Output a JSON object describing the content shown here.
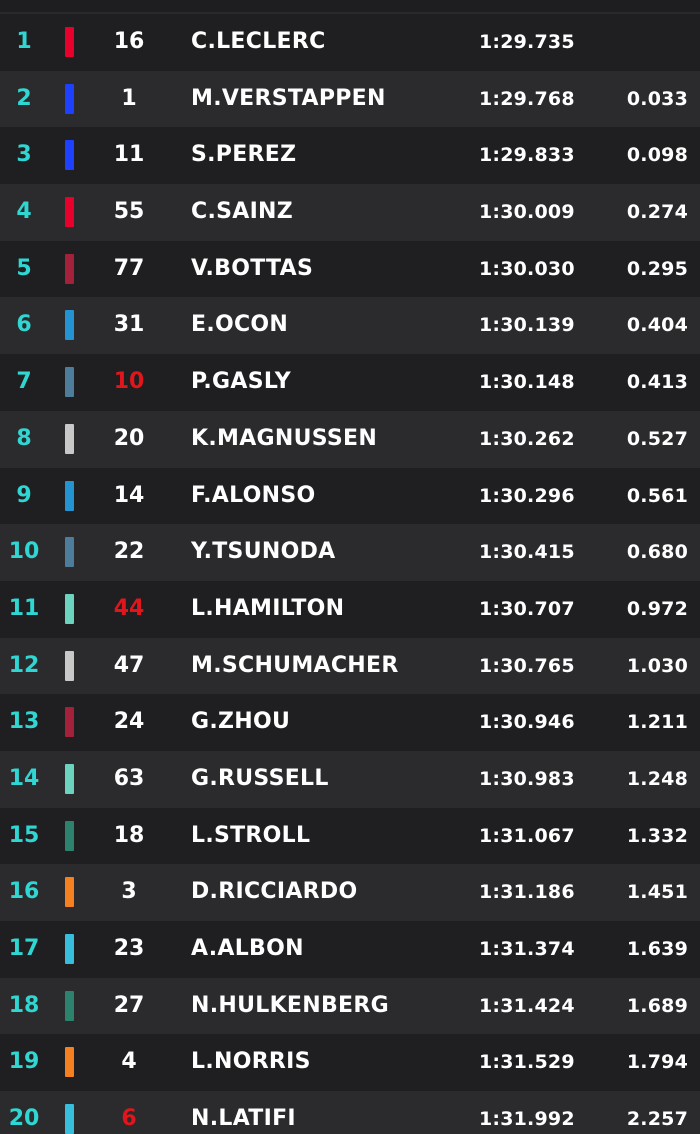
{
  "results": [
    {
      "pos": "1",
      "number": "16",
      "driver": "C.LECLERC",
      "time": "1:29.735",
      "gap": "",
      "team_color": "#e8002d",
      "number_color": "white"
    },
    {
      "pos": "2",
      "number": "1",
      "driver": "M.VERSTAPPEN",
      "time": "1:29.768",
      "gap": "0.033",
      "team_color": "#1e41ff",
      "number_color": "white"
    },
    {
      "pos": "3",
      "number": "11",
      "driver": "S.PEREZ",
      "time": "1:29.833",
      "gap": "0.098",
      "team_color": "#1e41ff",
      "number_color": "white"
    },
    {
      "pos": "4",
      "number": "55",
      "driver": "C.SAINZ",
      "time": "1:30.009",
      "gap": "0.274",
      "team_color": "#e8002d",
      "number_color": "white"
    },
    {
      "pos": "5",
      "number": "77",
      "driver": "V.BOTTAS",
      "time": "1:30.030",
      "gap": "0.295",
      "team_color": "#a3213a",
      "number_color": "white"
    },
    {
      "pos": "6",
      "number": "31",
      "driver": "E.OCON",
      "time": "1:30.139",
      "gap": "0.404",
      "team_color": "#2493d1",
      "number_color": "white"
    },
    {
      "pos": "7",
      "number": "10",
      "driver": "P.GASLY",
      "time": "1:30.148",
      "gap": "0.413",
      "team_color": "#4e7c9b",
      "number_color": "red"
    },
    {
      "pos": "8",
      "number": "20",
      "driver": "K.MAGNUSSEN",
      "time": "1:30.262",
      "gap": "0.527",
      "team_color": "#c8c8c8",
      "number_color": "white"
    },
    {
      "pos": "9",
      "number": "14",
      "driver": "F.ALONSO",
      "time": "1:30.296",
      "gap": "0.561",
      "team_color": "#2493d1",
      "number_color": "white"
    },
    {
      "pos": "10",
      "number": "22",
      "driver": "Y.TSUNODA",
      "time": "1:30.415",
      "gap": "0.680",
      "team_color": "#4e7c9b",
      "number_color": "white"
    },
    {
      "pos": "11",
      "number": "44",
      "driver": "L.HAMILTON",
      "time": "1:30.707",
      "gap": "0.972",
      "team_color": "#6cd3bf",
      "number_color": "red"
    },
    {
      "pos": "12",
      "number": "47",
      "driver": "M.SCHUMACHER",
      "time": "1:30.765",
      "gap": "1.030",
      "team_color": "#c8c8c8",
      "number_color": "white"
    },
    {
      "pos": "13",
      "number": "24",
      "driver": "G.ZHOU",
      "time": "1:30.946",
      "gap": "1.211",
      "team_color": "#a3213a",
      "number_color": "white"
    },
    {
      "pos": "14",
      "number": "63",
      "driver": "G.RUSSELL",
      "time": "1:30.983",
      "gap": "1.248",
      "team_color": "#6cd3bf",
      "number_color": "white"
    },
    {
      "pos": "15",
      "number": "18",
      "driver": "L.STROLL",
      "time": "1:31.067",
      "gap": "1.332",
      "team_color": "#2d826d",
      "number_color": "white"
    },
    {
      "pos": "16",
      "number": "3",
      "driver": "D.RICCIARDO",
      "time": "1:31.186",
      "gap": "1.451",
      "team_color": "#f58020",
      "number_color": "white"
    },
    {
      "pos": "17",
      "number": "23",
      "driver": "A.ALBON",
      "time": "1:31.374",
      "gap": "1.639",
      "team_color": "#37bedd",
      "number_color": "white"
    },
    {
      "pos": "18",
      "number": "27",
      "driver": "N.HULKENBERG",
      "time": "1:31.424",
      "gap": "1.689",
      "team_color": "#2d826d",
      "number_color": "white"
    },
    {
      "pos": "19",
      "number": "4",
      "driver": "L.NORRIS",
      "time": "1:31.529",
      "gap": "1.794",
      "team_color": "#f58020",
      "number_color": "white"
    },
    {
      "pos": "20",
      "number": "6",
      "driver": "N.LATIFI",
      "time": "1:31.992",
      "gap": "2.257",
      "team_color": "#37bedd",
      "number_color": "red"
    }
  ],
  "colors": {
    "position_accent": "#2fd6d2",
    "number_alert": "#e0161c",
    "row_dark": "#1f1f21",
    "row_light": "#2b2b2e"
  }
}
